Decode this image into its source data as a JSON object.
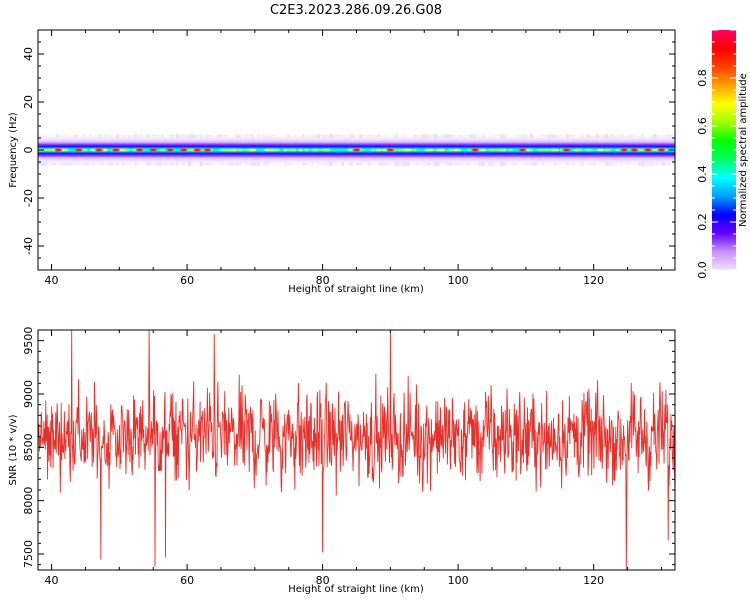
{
  "figure": {
    "title": "C2E3.2023.286.09.26.G08"
  },
  "chart_data": [
    {
      "type": "heatmap",
      "title": "",
      "xlabel": "Height of straight line (km)",
      "ylabel": "Frequency (Hz)",
      "xlim": [
        38,
        132
      ],
      "ylim": [
        -50,
        50
      ],
      "xticks": [
        40,
        60,
        80,
        100,
        120
      ],
      "yticks": [
        40,
        20,
        0,
        -20,
        -40
      ],
      "band": {
        "center_hz": 0,
        "half_width_hz": 3,
        "halo_half_width_hz": 6
      },
      "peak_heights_km": [
        41,
        44,
        47,
        49.5,
        53,
        55,
        57.5,
        59.5,
        61.5,
        63,
        85,
        90,
        102.5,
        109.5,
        116,
        124.5,
        126,
        128,
        130
      ],
      "colorbar": {
        "label": "Normalized spectral amplitude",
        "ticks": [
          0.0,
          0.2,
          0.4,
          0.6,
          0.8
        ],
        "range": [
          0,
          1
        ],
        "colors": [
          "#f0e0ff",
          "#c890ff",
          "#6600ff",
          "#0000ff",
          "#00a0ff",
          "#00ffff",
          "#00ff60",
          "#00ff00",
          "#a0ff00",
          "#ffff00",
          "#ffa000",
          "#ff4000",
          "#ff0000",
          "#ff0066"
        ]
      },
      "grid": false
    },
    {
      "type": "line",
      "title": "",
      "xlabel": "Height of straight line (km)",
      "ylabel": "SNR (10 * v/v)",
      "xlim": [
        38,
        132
      ],
      "ylim": [
        7350,
        9600
      ],
      "xticks": [
        40,
        60,
        80,
        100,
        120
      ],
      "yticks": [
        9500,
        9000,
        8500,
        8000,
        7500
      ],
      "series": [
        {
          "color": "#e8302a",
          "x_range": [
            38,
            132
          ],
          "mean": 8600,
          "std": 300,
          "n_points": 1400,
          "notable_points": [
            {
              "x": 43,
              "y": 9600
            },
            {
              "x": 47.3,
              "y": 7450
            },
            {
              "x": 54.4,
              "y": 9600
            },
            {
              "x": 55.3,
              "y": 7380
            },
            {
              "x": 56.8,
              "y": 7470
            },
            {
              "x": 64,
              "y": 9560
            },
            {
              "x": 80,
              "y": 7520
            },
            {
              "x": 90,
              "y": 9580
            },
            {
              "x": 124.8,
              "y": 7350
            },
            {
              "x": 131,
              "y": 7630
            }
          ]
        }
      ],
      "grid": false
    }
  ]
}
